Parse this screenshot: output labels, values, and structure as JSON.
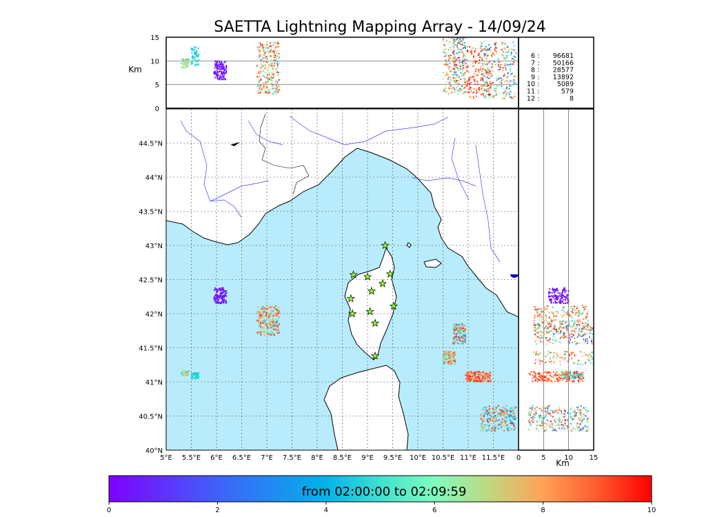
{
  "title": "SAETTA Lightning Mapping Array - 14/09/24",
  "colors": {
    "sea": "#b8ecfc",
    "land": "#ffffff",
    "river": "#4040ff",
    "coast": "#000000",
    "station": "#90ff20",
    "highlight": "#ff0000"
  },
  "chart_data": {
    "type": "scatter",
    "map": {
      "lon_range": [
        5,
        12.0
      ],
      "lat_range": [
        40,
        45.0
      ],
      "x_ticks": [
        "5°E",
        "5.5°E",
        "6°E",
        "6.5°E",
        "7°E",
        "7.5°E",
        "8°E",
        "8.5°E",
        "9°E",
        "9.5°E",
        "10°E",
        "10.5°E",
        "11°E",
        "11.5°E"
      ],
      "y_ticks": [
        "40°N",
        "40.5°N",
        "41°N",
        "41.5°N",
        "42°N",
        "42.5°N",
        "43°N",
        "43.5°N",
        "44°N",
        "44.5°N"
      ]
    },
    "altitude_axis": {
      "label": "Km",
      "range": [
        0,
        15
      ],
      "ticks": [
        "0",
        "5",
        "10",
        "15"
      ]
    },
    "counts_by_altitude": [
      {
        "alt": "6",
        "count": "96681",
        "highlight": false
      },
      {
        "alt": "7",
        "count": "50166",
        "highlight": true
      },
      {
        "alt": "8",
        "count": "28577",
        "highlight": false
      },
      {
        "alt": "9",
        "count": "13892",
        "highlight": false
      },
      {
        "alt": "10",
        "count": "5089",
        "highlight": false
      },
      {
        "alt": "11",
        "count": "579",
        "highlight": false
      },
      {
        "alt": "12",
        "count": "8",
        "highlight": false
      }
    ],
    "stations": [
      {
        "lon": 9.35,
        "lat": 43.0
      },
      {
        "lon": 8.72,
        "lat": 42.57
      },
      {
        "lon": 9.0,
        "lat": 42.54
      },
      {
        "lon": 9.45,
        "lat": 42.58
      },
      {
        "lon": 9.3,
        "lat": 42.44
      },
      {
        "lon": 9.08,
        "lat": 42.33
      },
      {
        "lon": 8.67,
        "lat": 42.22
      },
      {
        "lon": 9.52,
        "lat": 42.11
      },
      {
        "lon": 9.05,
        "lat": 42.03
      },
      {
        "lon": 8.7,
        "lat": 42.0
      },
      {
        "lon": 9.15,
        "lat": 41.86
      },
      {
        "lon": 9.15,
        "lat": 41.38
      }
    ],
    "clusters": [
      {
        "lon": [
          5.95,
          6.2
        ],
        "lat": [
          42.15,
          42.38
        ],
        "alt": [
          6,
          10
        ],
        "time": [
          0,
          0.6
        ]
      },
      {
        "lon": [
          5.3,
          5.45
        ],
        "lat": [
          41.09,
          41.16
        ],
        "alt": [
          8.5,
          10.5
        ],
        "time": [
          4,
          8
        ]
      },
      {
        "lon": [
          5.5,
          5.65
        ],
        "lat": [
          41.04,
          41.14
        ],
        "alt": [
          9,
          13
        ],
        "time": [
          4,
          5
        ]
      },
      {
        "lon": [
          6.8,
          7.25
        ],
        "lat": [
          41.68,
          42.12
        ],
        "alt": [
          3,
          14
        ],
        "time": [
          4,
          9.8
        ]
      },
      {
        "lon": [
          10.7,
          10.95
        ],
        "lat": [
          41.55,
          41.85
        ],
        "alt": [
          3,
          15
        ],
        "time": [
          0.5,
          9.8
        ]
      },
      {
        "lon": [
          10.5,
          10.75
        ],
        "lat": [
          41.25,
          41.45
        ],
        "alt": [
          3,
          15
        ],
        "time": [
          4,
          9.5
        ]
      },
      {
        "lon": [
          10.95,
          11.45
        ],
        "lat": [
          41.0,
          41.15
        ],
        "alt": [
          2,
          13
        ],
        "time": [
          7,
          9.8
        ]
      },
      {
        "lon": [
          11.25,
          11.95
        ],
        "lat": [
          40.28,
          40.65
        ],
        "alt": [
          2,
          14
        ],
        "time": [
          1,
          9.8
        ]
      }
    ],
    "colorbar": {
      "label": "from 02:00:00 to 02:09:59",
      "range": [
        0,
        10
      ],
      "ticks": [
        "0",
        "2",
        "4",
        "6",
        "8",
        "10"
      ]
    }
  }
}
